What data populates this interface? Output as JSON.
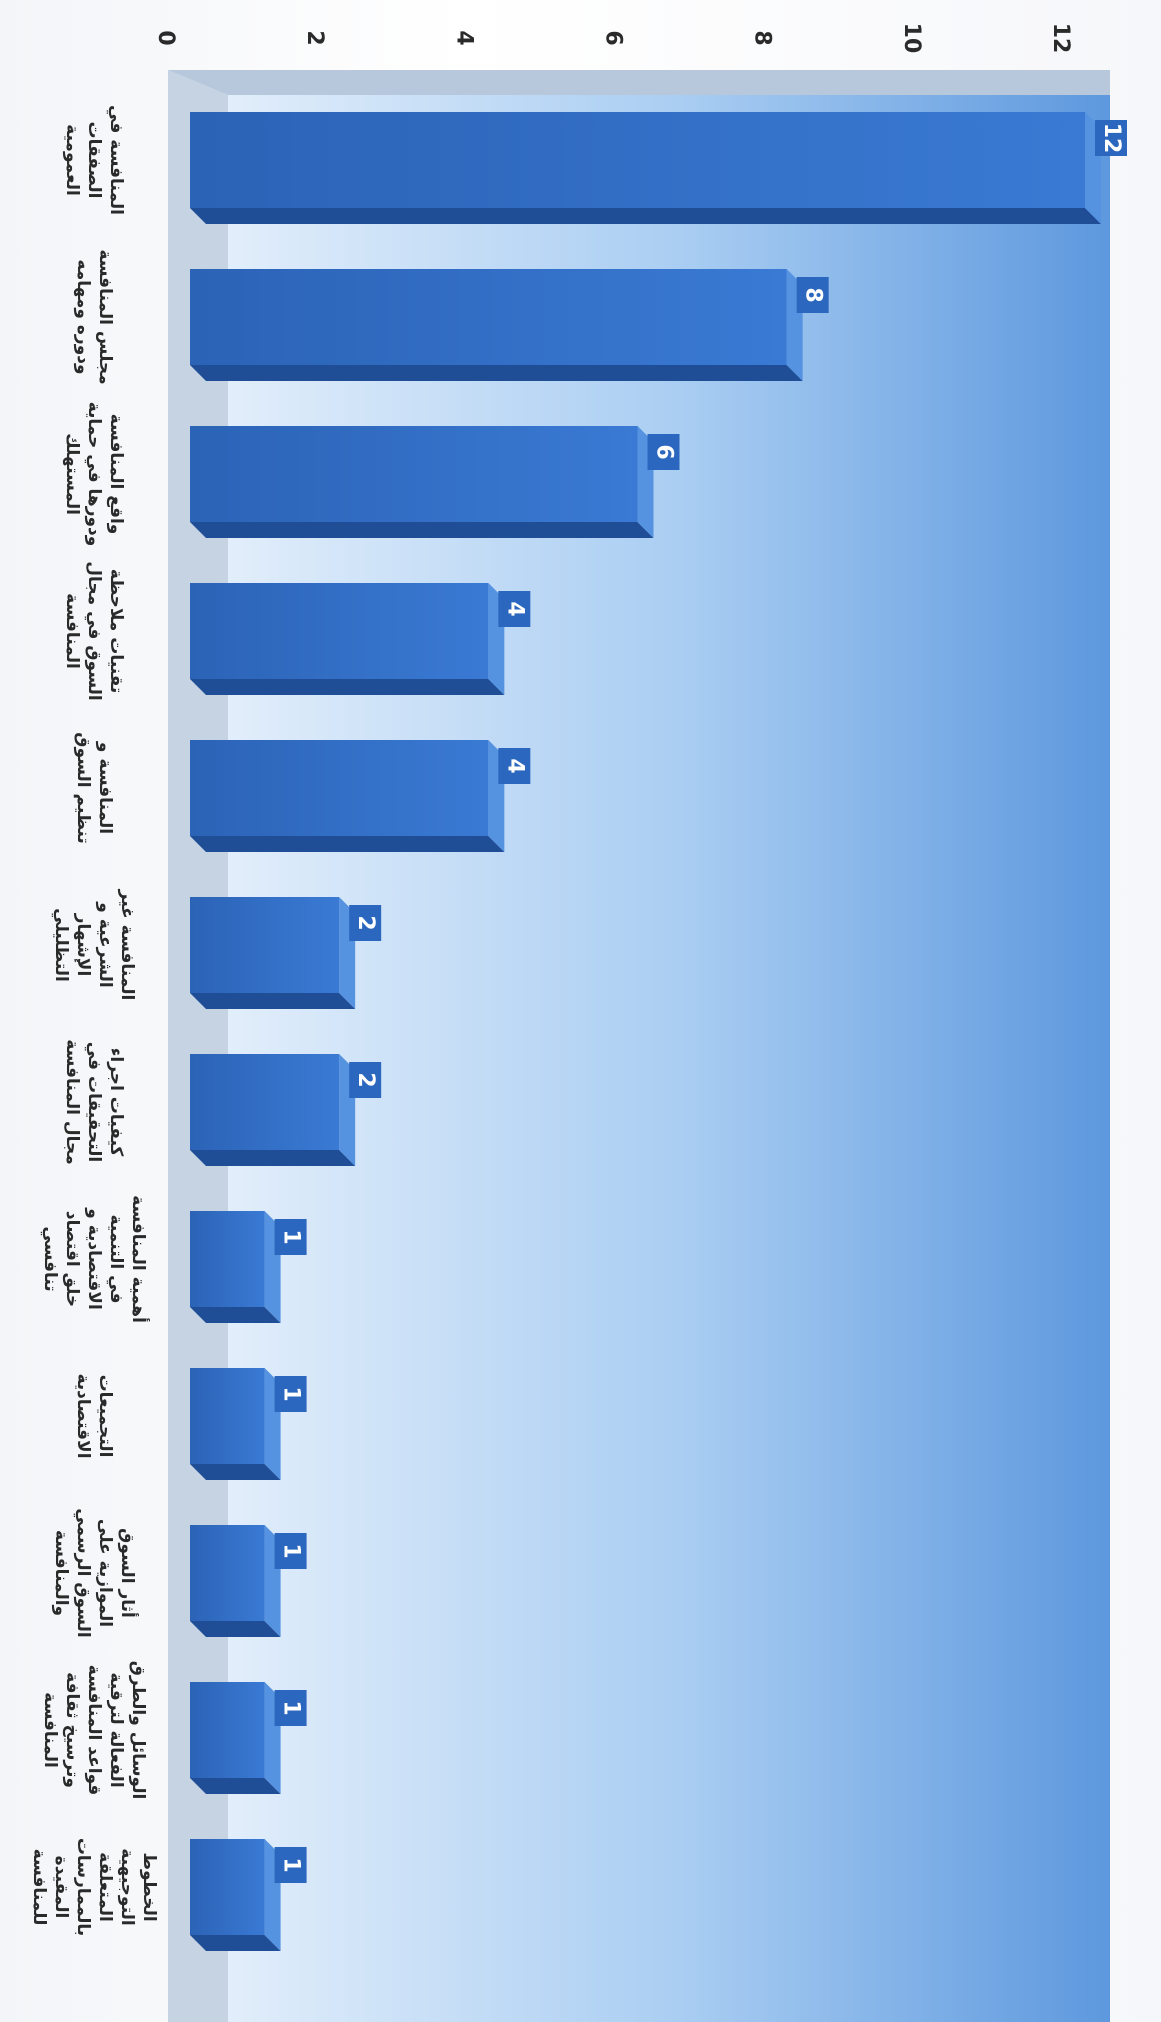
{
  "chart_data": {
    "type": "bar",
    "orientation": "horizontal-3d (page rotated 90° clockwise)",
    "categories": [
      "المنافسة في الصفقات العمومية",
      "مجلس المنافسة ودوره ومهامه",
      "واقع المنافسة ودورها في حماية المستهلك",
      "تقنيات ملاحظة السوق في مجال المنافسة",
      "المنافسة و تنظيم السوق",
      "المنافسة غير الشرعية و الإشهار التظليلي",
      "كيفيات اجراء التحقيقات في مجال المنافسة",
      "أهمية المنافسة في التنمية الاقتصادية و خلق اقتصاد تنافسي",
      "التجميعات الاقتصادية",
      "أثار السوق الموازية على السوق الرسمي والمنافسة",
      "الوسائل والطرق الفعالة لترقية قواعد المنافسة وترسيخ ثقافة المنافسة",
      "الخطوط التوجيهية المتعلقة بالممارسات المقيدة للمنافسة"
    ],
    "values": [
      12,
      8,
      6,
      4,
      4,
      2,
      2,
      1,
      1,
      1,
      1,
      1
    ],
    "xlim": [
      0,
      12
    ],
    "ticks": [
      "0",
      "2",
      "4",
      "6",
      "8",
      "10",
      "12"
    ],
    "grid": false,
    "legend": "none",
    "colors": {
      "bar_front": "#2f6dc6",
      "bar_top": "#5592e0",
      "bar_side": "#1f4d96",
      "label_box": "#2c67bf",
      "backwall": "#7fb0e8",
      "floor": "#cfd8e4"
    }
  }
}
